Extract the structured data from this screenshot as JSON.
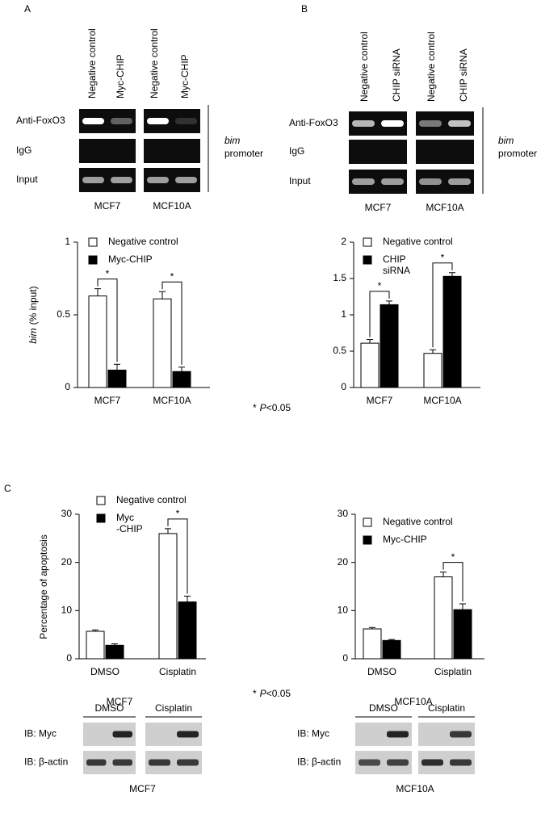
{
  "panel_labels": [
    "A",
    "B",
    "C"
  ],
  "gels": [
    {
      "columns": [
        "Negative control",
        "Myc-CHIP",
        "Negative control",
        "Myc-CHIP"
      ],
      "rows": [
        "Anti-FoxO3",
        "IgG",
        "Input"
      ],
      "cell_lines": [
        "MCF7",
        "MCF10A"
      ],
      "target": [
        "bim",
        "promoter"
      ]
    },
    {
      "columns": [
        "Negative control",
        "CHIP siRNA",
        "Negative control",
        "CHIP siRNA"
      ],
      "rows": [
        "Anti-FoxO3",
        "IgG",
        "Input"
      ],
      "cell_lines": [
        "MCF7",
        "MCF10A"
      ],
      "target": [
        "bim",
        "promoter"
      ]
    }
  ],
  "chart_data": [
    {
      "type": "bar",
      "ylabel": [
        "bim",
        "(% input)"
      ],
      "categories": [
        "MCF7",
        "MCF10A"
      ],
      "series": [
        {
          "name": "Negative control",
          "color": "#ffffff",
          "values": [
            0.63,
            0.61
          ],
          "errors": [
            0.05,
            0.05
          ]
        },
        {
          "name": "Myc-CHIP",
          "color": "#000000",
          "values": [
            0.12,
            0.11
          ],
          "errors": [
            0.04,
            0.03
          ]
        }
      ],
      "ylim": [
        0,
        1
      ],
      "yticks": [
        0,
        0.5,
        1
      ],
      "significance": [
        {
          "category": "MCF7",
          "label": "*"
        },
        {
          "category": "MCF10A",
          "label": "*"
        }
      ]
    },
    {
      "type": "bar",
      "categories": [
        "MCF7",
        "MCF10A"
      ],
      "series": [
        {
          "name": "Negative control",
          "color": "#ffffff",
          "values": [
            0.61,
            0.47
          ],
          "errors": [
            0.05,
            0.05
          ]
        },
        {
          "name": "CHIP\nsiRNA",
          "color": "#000000",
          "values": [
            1.14,
            1.53
          ],
          "errors": [
            0.05,
            0.05
          ]
        }
      ],
      "ylim": [
        0,
        2
      ],
      "yticks": [
        0,
        0.5,
        1,
        1.5,
        2
      ],
      "significance": [
        {
          "category": "MCF7",
          "label": "*"
        },
        {
          "category": "MCF10A",
          "label": "*"
        }
      ]
    },
    {
      "type": "bar",
      "ylabel": "Percentage of apoptosis",
      "xlabel": "MCF7",
      "categories": [
        "DMSO",
        "Cisplatin"
      ],
      "series": [
        {
          "name": "Negative control",
          "color": "#ffffff",
          "values": [
            5.7,
            26
          ],
          "errors": [
            0.3,
            1
          ]
        },
        {
          "name": "Myc\n-CHIP",
          "color": "#000000",
          "values": [
            2.8,
            11.8
          ],
          "errors": [
            0.3,
            1.2
          ]
        }
      ],
      "ylim": [
        0,
        30
      ],
      "yticks": [
        0,
        10,
        20,
        30
      ],
      "significance": [
        {
          "category": "Cisplatin",
          "label": "*"
        }
      ]
    },
    {
      "type": "bar",
      "xlabel": "MCF10A",
      "categories": [
        "DMSO",
        "Cisplatin"
      ],
      "series": [
        {
          "name": "Negative control",
          "color": "#ffffff",
          "values": [
            6.2,
            17
          ],
          "errors": [
            0.3,
            1
          ]
        },
        {
          "name": "Myc-CHIP",
          "color": "#000000",
          "values": [
            3.8,
            10.2
          ],
          "errors": [
            0.2,
            1.2
          ]
        }
      ],
      "ylim": [
        0,
        30
      ],
      "yticks": [
        0,
        10,
        20,
        30
      ],
      "significance": [
        {
          "category": "Cisplatin",
          "label": "*"
        }
      ]
    }
  ],
  "footnotes": [
    {
      "star": "*",
      "p": "P",
      "rest": "<0.05"
    },
    {
      "star": "*",
      "p": "P",
      "rest": "<0.05"
    }
  ],
  "blots": [
    {
      "treatments": [
        "DMSO",
        "Cisplatin"
      ],
      "rows": [
        "IB: Myc",
        "IB: β-actin"
      ],
      "cell_line": "MCF7"
    },
    {
      "treatments": [
        "DMSO",
        "Cisplatin"
      ],
      "rows": [
        "IB: Myc",
        "IB: β-actin"
      ],
      "cell_line": "MCF10A"
    }
  ]
}
